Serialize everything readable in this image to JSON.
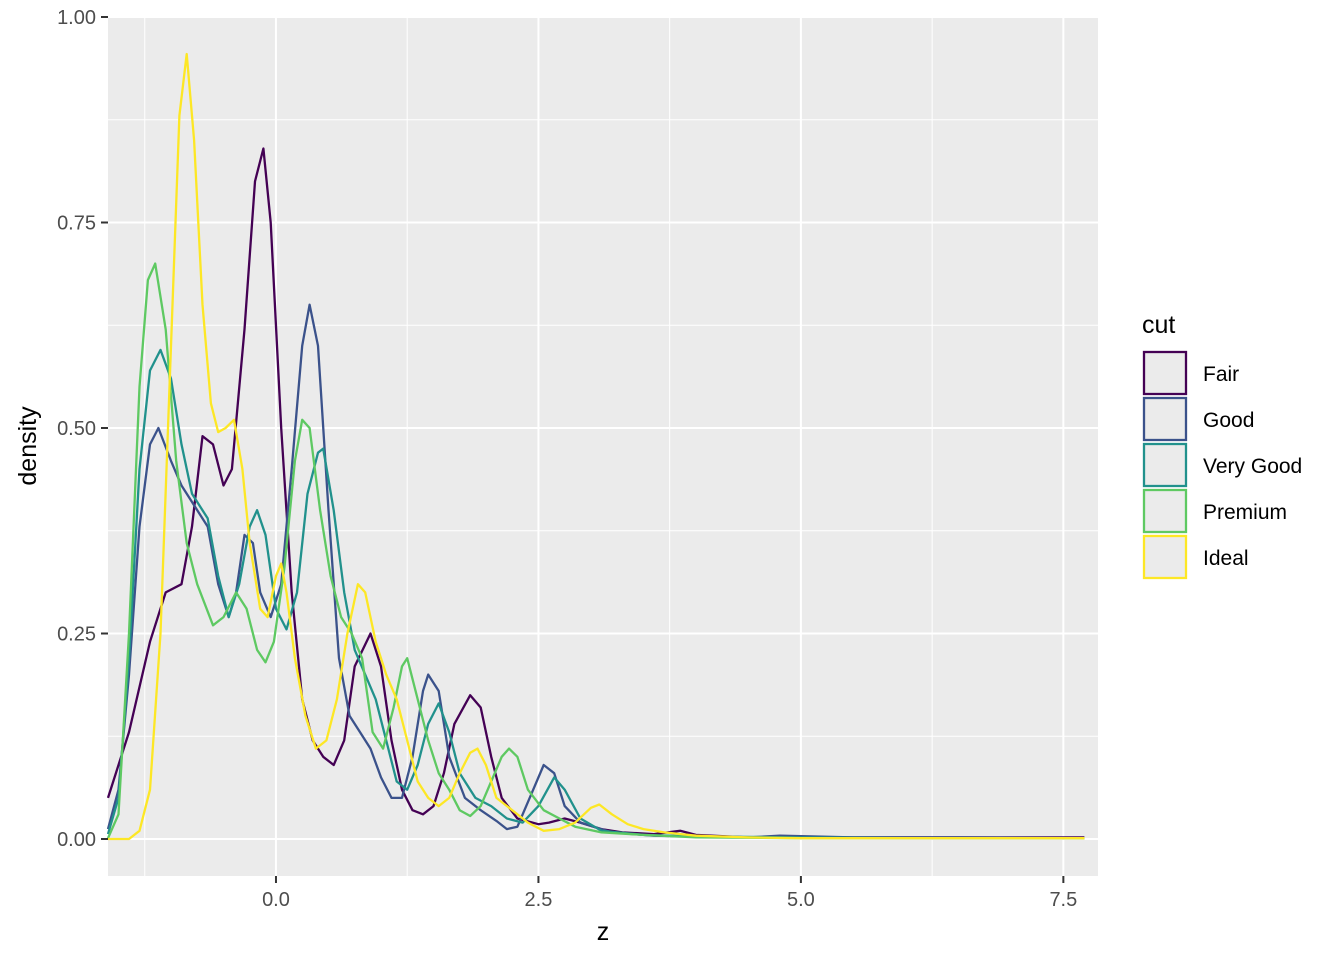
{
  "chart_data": {
    "type": "line",
    "title": "",
    "xlabel": "z",
    "ylabel": "density",
    "xlim": [
      -1.6,
      7.83
    ],
    "ylim": [
      -0.045,
      1.0
    ],
    "x_ticks": [
      0.0,
      2.5,
      5.0,
      7.5
    ],
    "x_tick_labels": [
      "0.0",
      "2.5",
      "5.0",
      "7.5"
    ],
    "y_ticks": [
      0.0,
      0.25,
      0.5,
      0.75,
      1.0
    ],
    "y_tick_labels": [
      "0.00",
      "0.25",
      "0.50",
      "0.75",
      "1.00"
    ],
    "grid": true,
    "legend": {
      "title": "cut",
      "position": "right"
    },
    "series": [
      {
        "name": "Fair",
        "color": "#440154",
        "points": [
          [
            -1.6,
            0.05
          ],
          [
            -1.4,
            0.13
          ],
          [
            -1.2,
            0.24
          ],
          [
            -1.05,
            0.3
          ],
          [
            -0.9,
            0.31
          ],
          [
            -0.8,
            0.38
          ],
          [
            -0.7,
            0.49
          ],
          [
            -0.6,
            0.48
          ],
          [
            -0.5,
            0.43
          ],
          [
            -0.42,
            0.45
          ],
          [
            -0.3,
            0.62
          ],
          [
            -0.2,
            0.8
          ],
          [
            -0.12,
            0.84
          ],
          [
            -0.05,
            0.75
          ],
          [
            0.05,
            0.5
          ],
          [
            0.15,
            0.3
          ],
          [
            0.25,
            0.17
          ],
          [
            0.35,
            0.12
          ],
          [
            0.45,
            0.1
          ],
          [
            0.55,
            0.09
          ],
          [
            0.65,
            0.12
          ],
          [
            0.75,
            0.21
          ],
          [
            0.9,
            0.25
          ],
          [
            1.0,
            0.21
          ],
          [
            1.1,
            0.12
          ],
          [
            1.2,
            0.06
          ],
          [
            1.3,
            0.035
          ],
          [
            1.4,
            0.03
          ],
          [
            1.5,
            0.04
          ],
          [
            1.6,
            0.08
          ],
          [
            1.7,
            0.14
          ],
          [
            1.85,
            0.175
          ],
          [
            1.95,
            0.16
          ],
          [
            2.05,
            0.1
          ],
          [
            2.15,
            0.05
          ],
          [
            2.3,
            0.025
          ],
          [
            2.5,
            0.018
          ],
          [
            2.6,
            0.02
          ],
          [
            2.75,
            0.025
          ],
          [
            2.9,
            0.02
          ],
          [
            3.1,
            0.012
          ],
          [
            3.3,
            0.008
          ],
          [
            3.6,
            0.006
          ],
          [
            3.85,
            0.01
          ],
          [
            4.0,
            0.005
          ],
          [
            4.5,
            0.002
          ],
          [
            5.0,
            0.002
          ],
          [
            6.0,
            0.002
          ],
          [
            7.0,
            0.002
          ],
          [
            7.7,
            0.002
          ]
        ]
      },
      {
        "name": "Good",
        "color": "#3b528b",
        "points": [
          [
            -1.6,
            0.012
          ],
          [
            -1.5,
            0.06
          ],
          [
            -1.4,
            0.2
          ],
          [
            -1.3,
            0.38
          ],
          [
            -1.2,
            0.48
          ],
          [
            -1.12,
            0.5
          ],
          [
            -1.0,
            0.46
          ],
          [
            -0.9,
            0.43
          ],
          [
            -0.8,
            0.41
          ],
          [
            -0.65,
            0.38
          ],
          [
            -0.55,
            0.31
          ],
          [
            -0.45,
            0.27
          ],
          [
            -0.38,
            0.3
          ],
          [
            -0.3,
            0.37
          ],
          [
            -0.22,
            0.36
          ],
          [
            -0.15,
            0.3
          ],
          [
            -0.05,
            0.27
          ],
          [
            0.05,
            0.31
          ],
          [
            0.15,
            0.45
          ],
          [
            0.25,
            0.6
          ],
          [
            0.32,
            0.65
          ],
          [
            0.4,
            0.6
          ],
          [
            0.5,
            0.4
          ],
          [
            0.6,
            0.22
          ],
          [
            0.7,
            0.15
          ],
          [
            0.8,
            0.13
          ],
          [
            0.9,
            0.11
          ],
          [
            1.0,
            0.075
          ],
          [
            1.1,
            0.05
          ],
          [
            1.2,
            0.05
          ],
          [
            1.3,
            0.1
          ],
          [
            1.4,
            0.18
          ],
          [
            1.45,
            0.2
          ],
          [
            1.55,
            0.18
          ],
          [
            1.65,
            0.1
          ],
          [
            1.8,
            0.05
          ],
          [
            1.95,
            0.035
          ],
          [
            2.1,
            0.022
          ],
          [
            2.2,
            0.012
          ],
          [
            2.3,
            0.015
          ],
          [
            2.45,
            0.06
          ],
          [
            2.55,
            0.09
          ],
          [
            2.65,
            0.08
          ],
          [
            2.75,
            0.04
          ],
          [
            2.9,
            0.02
          ],
          [
            3.2,
            0.008
          ],
          [
            3.6,
            0.004
          ],
          [
            4.0,
            0.003
          ],
          [
            4.5,
            0.002
          ],
          [
            4.8,
            0.004
          ],
          [
            5.5,
            0.002
          ],
          [
            6.5,
            0.002
          ],
          [
            7.7,
            0.001
          ]
        ]
      },
      {
        "name": "Very Good",
        "color": "#21918c",
        "points": [
          [
            -1.6,
            0.006
          ],
          [
            -1.5,
            0.05
          ],
          [
            -1.4,
            0.22
          ],
          [
            -1.3,
            0.45
          ],
          [
            -1.2,
            0.57
          ],
          [
            -1.1,
            0.595
          ],
          [
            -1.0,
            0.56
          ],
          [
            -0.9,
            0.48
          ],
          [
            -0.8,
            0.42
          ],
          [
            -0.65,
            0.39
          ],
          [
            -0.55,
            0.32
          ],
          [
            -0.45,
            0.27
          ],
          [
            -0.35,
            0.31
          ],
          [
            -0.25,
            0.38
          ],
          [
            -0.18,
            0.4
          ],
          [
            -0.1,
            0.37
          ],
          [
            0.0,
            0.28
          ],
          [
            0.1,
            0.255
          ],
          [
            0.2,
            0.3
          ],
          [
            0.3,
            0.42
          ],
          [
            0.4,
            0.47
          ],
          [
            0.45,
            0.475
          ],
          [
            0.55,
            0.4
          ],
          [
            0.65,
            0.3
          ],
          [
            0.75,
            0.23
          ],
          [
            0.85,
            0.2
          ],
          [
            0.95,
            0.17
          ],
          [
            1.05,
            0.12
          ],
          [
            1.15,
            0.07
          ],
          [
            1.25,
            0.06
          ],
          [
            1.35,
            0.09
          ],
          [
            1.45,
            0.14
          ],
          [
            1.55,
            0.165
          ],
          [
            1.65,
            0.13
          ],
          [
            1.75,
            0.08
          ],
          [
            1.9,
            0.05
          ],
          [
            2.05,
            0.04
          ],
          [
            2.2,
            0.025
          ],
          [
            2.35,
            0.02
          ],
          [
            2.5,
            0.04
          ],
          [
            2.65,
            0.075
          ],
          [
            2.75,
            0.06
          ],
          [
            2.9,
            0.025
          ],
          [
            3.1,
            0.01
          ],
          [
            3.5,
            0.005
          ],
          [
            4.0,
            0.003
          ],
          [
            5.0,
            0.002
          ],
          [
            6.0,
            0.001
          ],
          [
            7.0,
            0.001
          ],
          [
            7.7,
            0.001
          ]
        ]
      },
      {
        "name": "Premium",
        "color": "#5ec962",
        "points": [
          [
            -1.6,
            0.001
          ],
          [
            -1.5,
            0.03
          ],
          [
            -1.4,
            0.25
          ],
          [
            -1.3,
            0.55
          ],
          [
            -1.22,
            0.68
          ],
          [
            -1.15,
            0.7
          ],
          [
            -1.05,
            0.62
          ],
          [
            -0.95,
            0.46
          ],
          [
            -0.85,
            0.36
          ],
          [
            -0.75,
            0.31
          ],
          [
            -0.6,
            0.26
          ],
          [
            -0.5,
            0.27
          ],
          [
            -0.38,
            0.3
          ],
          [
            -0.28,
            0.28
          ],
          [
            -0.18,
            0.23
          ],
          [
            -0.1,
            0.215
          ],
          [
            -0.02,
            0.24
          ],
          [
            0.08,
            0.33
          ],
          [
            0.18,
            0.46
          ],
          [
            0.25,
            0.51
          ],
          [
            0.32,
            0.5
          ],
          [
            0.42,
            0.4
          ],
          [
            0.52,
            0.32
          ],
          [
            0.62,
            0.27
          ],
          [
            0.72,
            0.25
          ],
          [
            0.82,
            0.22
          ],
          [
            0.92,
            0.13
          ],
          [
            1.02,
            0.11
          ],
          [
            1.12,
            0.16
          ],
          [
            1.2,
            0.21
          ],
          [
            1.25,
            0.22
          ],
          [
            1.35,
            0.17
          ],
          [
            1.45,
            0.12
          ],
          [
            1.55,
            0.08
          ],
          [
            1.65,
            0.06
          ],
          [
            1.75,
            0.035
          ],
          [
            1.85,
            0.028
          ],
          [
            1.95,
            0.04
          ],
          [
            2.05,
            0.07
          ],
          [
            2.15,
            0.1
          ],
          [
            2.22,
            0.11
          ],
          [
            2.3,
            0.1
          ],
          [
            2.4,
            0.06
          ],
          [
            2.55,
            0.035
          ],
          [
            2.7,
            0.025
          ],
          [
            2.85,
            0.015
          ],
          [
            3.1,
            0.008
          ],
          [
            3.5,
            0.005
          ],
          [
            4.0,
            0.002
          ],
          [
            5.0,
            0.001
          ],
          [
            6.0,
            0.001
          ],
          [
            7.0,
            0.001
          ],
          [
            7.7,
            0.001
          ]
        ]
      },
      {
        "name": "Ideal",
        "color": "#fde725",
        "points": [
          [
            -1.6,
            0.0
          ],
          [
            -1.4,
            0.0
          ],
          [
            -1.3,
            0.01
          ],
          [
            -1.2,
            0.06
          ],
          [
            -1.1,
            0.25
          ],
          [
            -1.0,
            0.6
          ],
          [
            -0.92,
            0.88
          ],
          [
            -0.85,
            0.955
          ],
          [
            -0.78,
            0.85
          ],
          [
            -0.7,
            0.65
          ],
          [
            -0.62,
            0.53
          ],
          [
            -0.55,
            0.495
          ],
          [
            -0.48,
            0.5
          ],
          [
            -0.4,
            0.51
          ],
          [
            -0.32,
            0.45
          ],
          [
            -0.25,
            0.36
          ],
          [
            -0.15,
            0.28
          ],
          [
            -0.08,
            0.27
          ],
          [
            0.0,
            0.32
          ],
          [
            0.05,
            0.335
          ],
          [
            0.1,
            0.3
          ],
          [
            0.18,
            0.22
          ],
          [
            0.28,
            0.15
          ],
          [
            0.38,
            0.11
          ],
          [
            0.48,
            0.12
          ],
          [
            0.58,
            0.17
          ],
          [
            0.68,
            0.25
          ],
          [
            0.78,
            0.31
          ],
          [
            0.85,
            0.3
          ],
          [
            0.95,
            0.24
          ],
          [
            1.05,
            0.2
          ],
          [
            1.15,
            0.17
          ],
          [
            1.25,
            0.12
          ],
          [
            1.35,
            0.07
          ],
          [
            1.45,
            0.05
          ],
          [
            1.55,
            0.04
          ],
          [
            1.65,
            0.05
          ],
          [
            1.75,
            0.08
          ],
          [
            1.85,
            0.105
          ],
          [
            1.92,
            0.11
          ],
          [
            2.0,
            0.09
          ],
          [
            2.1,
            0.05
          ],
          [
            2.25,
            0.035
          ],
          [
            2.4,
            0.02
          ],
          [
            2.55,
            0.01
          ],
          [
            2.7,
            0.012
          ],
          [
            2.85,
            0.02
          ],
          [
            3.0,
            0.038
          ],
          [
            3.08,
            0.042
          ],
          [
            3.2,
            0.03
          ],
          [
            3.35,
            0.018
          ],
          [
            3.5,
            0.012
          ],
          [
            3.7,
            0.008
          ],
          [
            4.0,
            0.004
          ],
          [
            4.5,
            0.002
          ],
          [
            5.0,
            0.001
          ],
          [
            6.0,
            0.001
          ],
          [
            7.0,
            0.001
          ],
          [
            7.7,
            0.001
          ]
        ]
      }
    ]
  }
}
